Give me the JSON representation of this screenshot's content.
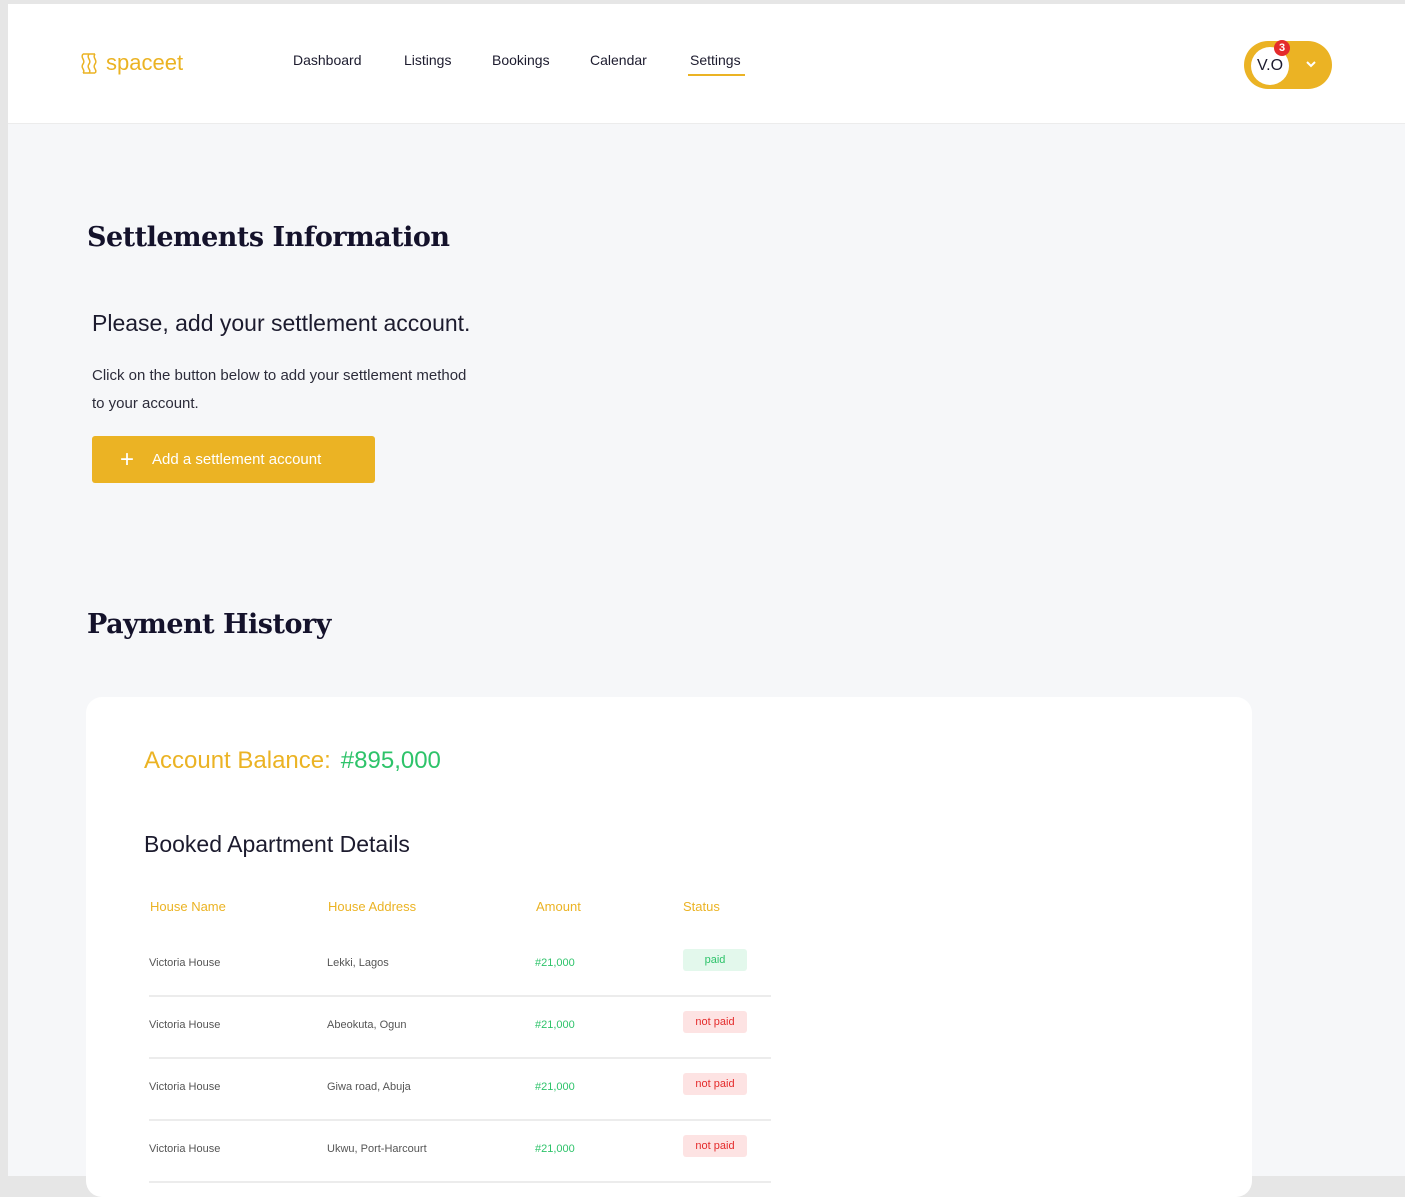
{
  "brand": {
    "name": "spaceet",
    "color": "#ebb324"
  },
  "nav": [
    {
      "label": "Dashboard"
    },
    {
      "label": "Listings"
    },
    {
      "label": "Bookings"
    },
    {
      "label": "Calendar"
    },
    {
      "label": "Settings",
      "active": true
    }
  ],
  "user": {
    "initials": "V.O",
    "notifications": "3"
  },
  "settlement": {
    "title": "Settlements Information",
    "subtitle": "Please, add your settlement account.",
    "description": "Click on the button below to add your settlement method to your account.",
    "button": "Add a settlement account"
  },
  "payment": {
    "title": "Payment History",
    "balance_label": "Account Balance:",
    "balance_value": "#895,000",
    "table_title": "Booked Apartment Details",
    "columns": [
      "House Name",
      "House Address",
      "Amount",
      "Status"
    ],
    "rows": [
      {
        "name": "Victoria House",
        "address": "Lekki, Lagos",
        "amount": "#21,000",
        "status": "paid"
      },
      {
        "name": "Victoria House",
        "address": "Abeokuta, Ogun",
        "amount": "#21,000",
        "status": "not paid"
      },
      {
        "name": "Victoria House",
        "address": "Giwa road, Abuja",
        "amount": "#21,000",
        "status": "not paid"
      },
      {
        "name": "Victoria House",
        "address": "Ukwu, Port-Harcourt",
        "amount": "#21,000",
        "status": "not paid"
      }
    ]
  }
}
